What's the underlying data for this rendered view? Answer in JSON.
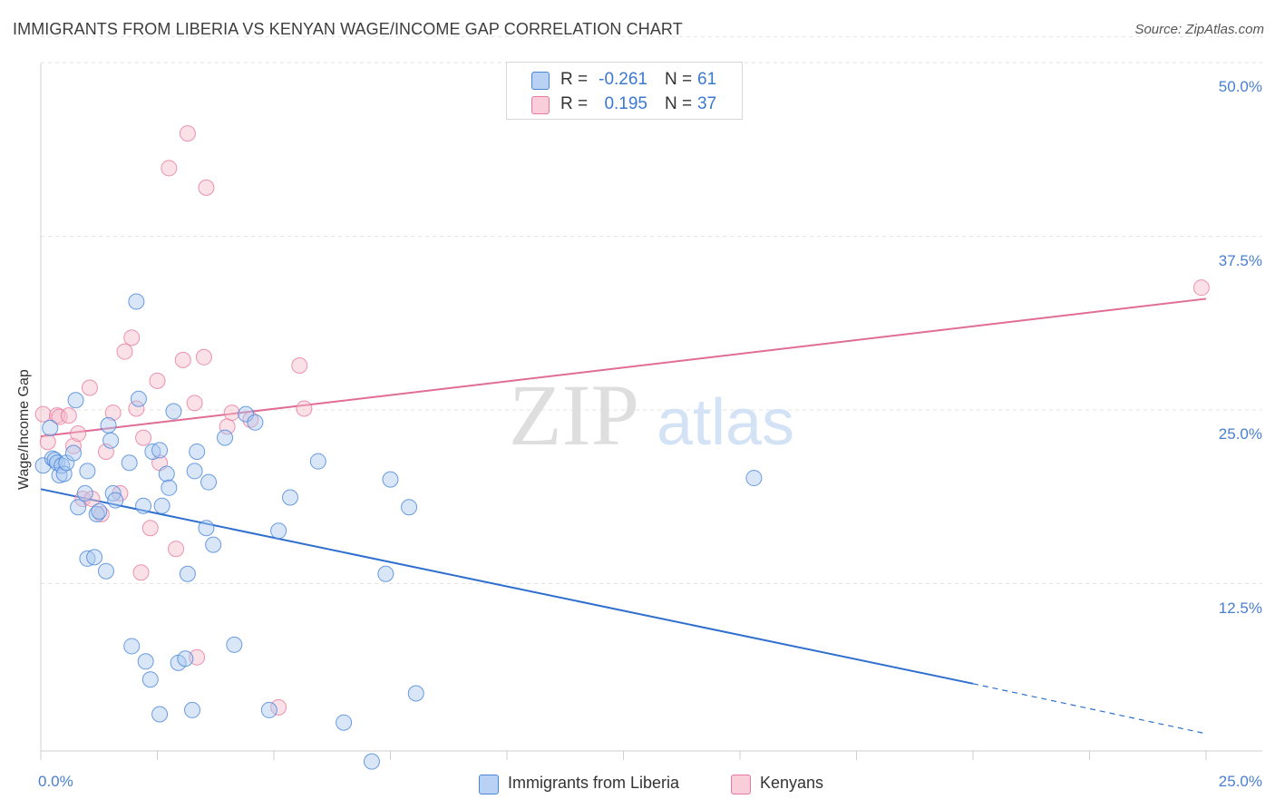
{
  "title": "IMMIGRANTS FROM LIBERIA VS KENYAN WAGE/INCOME GAP CORRELATION CHART",
  "source": "Source: ZipAtlas.com",
  "watermark": {
    "zip": "ZIP",
    "atlas": "atlas"
  },
  "colors": {
    "blue": "#4a86d8",
    "blue_fill": "#a9c8f0",
    "blue_line": "#2f6fce",
    "pink": "#e8799e",
    "pink_fill": "#f5bccd",
    "pink_line": "#e06d95",
    "tick_label": "#4a7fd0",
    "grid": "#e3e3e3"
  },
  "legend_top": {
    "rows": [
      {
        "r_label": "R =",
        "r_value": "-0.261",
        "n_label": "N =",
        "n_value": "61"
      },
      {
        "r_label": "R =",
        "r_value": "0.195",
        "n_label": "N =",
        "n_value": "37"
      }
    ]
  },
  "legend_bottom": [
    "Immigrants from Liberia",
    "Kenyans"
  ],
  "chart_data": {
    "type": "scatter",
    "title": "IMMIGRANTS FROM LIBERIA VS KENYAN WAGE/INCOME GAP CORRELATION CHART",
    "xlabel": "",
    "ylabel": "Wage/Income Gap",
    "xlim": [
      0,
      25
    ],
    "ylim": [
      0,
      52
    ],
    "x_tick_labels": [
      "0.0%",
      "25.0%"
    ],
    "y_ticks": [
      12.5,
      25.0,
      37.5,
      50.0
    ],
    "y_tick_labels": [
      "12.5%",
      "25.0%",
      "37.5%",
      "50.0%"
    ],
    "grid": true,
    "legend_position": "bottom",
    "series": [
      {
        "name": "Immigrants from Liberia",
        "r": -0.261,
        "n": 61,
        "trend": {
          "x0": 0,
          "y0": 19.3,
          "x1": 20,
          "y1": 5.3,
          "dashed_to_x": 25,
          "dashed_to_y": 1.7
        },
        "points": [
          [
            0.05,
            21.0
          ],
          [
            0.2,
            23.7
          ],
          [
            0.25,
            21.5
          ],
          [
            0.3,
            21.4
          ],
          [
            0.35,
            21.2
          ],
          [
            0.4,
            20.3
          ],
          [
            0.45,
            21.0
          ],
          [
            0.5,
            20.4
          ],
          [
            0.55,
            21.2
          ],
          [
            0.7,
            21.9
          ],
          [
            0.75,
            25.7
          ],
          [
            0.8,
            18.0
          ],
          [
            0.95,
            19.0
          ],
          [
            1.0,
            20.6
          ],
          [
            1.0,
            14.3
          ],
          [
            1.15,
            14.4
          ],
          [
            1.2,
            17.5
          ],
          [
            1.25,
            17.7
          ],
          [
            1.4,
            13.4
          ],
          [
            1.45,
            23.9
          ],
          [
            1.5,
            22.8
          ],
          [
            1.55,
            19.0
          ],
          [
            1.6,
            18.5
          ],
          [
            1.9,
            21.2
          ],
          [
            1.95,
            8.0
          ],
          [
            2.05,
            32.8
          ],
          [
            2.1,
            25.8
          ],
          [
            2.2,
            18.1
          ],
          [
            2.25,
            6.9
          ],
          [
            2.35,
            5.6
          ],
          [
            2.4,
            22.0
          ],
          [
            2.55,
            3.1
          ],
          [
            2.55,
            22.1
          ],
          [
            2.6,
            18.1
          ],
          [
            2.7,
            20.4
          ],
          [
            2.75,
            19.4
          ],
          [
            2.85,
            24.9
          ],
          [
            2.95,
            6.8
          ],
          [
            3.1,
            7.1
          ],
          [
            3.15,
            13.2
          ],
          [
            3.25,
            3.4
          ],
          [
            3.3,
            20.6
          ],
          [
            3.35,
            22.0
          ],
          [
            3.55,
            16.5
          ],
          [
            3.6,
            19.8
          ],
          [
            3.7,
            15.3
          ],
          [
            3.95,
            23.0
          ],
          [
            4.15,
            8.1
          ],
          [
            4.4,
            24.7
          ],
          [
            4.6,
            24.1
          ],
          [
            4.9,
            3.4
          ],
          [
            5.1,
            16.3
          ],
          [
            5.35,
            18.7
          ],
          [
            5.95,
            21.3
          ],
          [
            6.5,
            2.5
          ],
          [
            7.1,
            -0.3
          ],
          [
            7.4,
            13.2
          ],
          [
            7.5,
            20.0
          ],
          [
            7.9,
            18.0
          ],
          [
            8.05,
            4.6
          ],
          [
            15.3,
            20.1
          ]
        ]
      },
      {
        "name": "Kenyans",
        "r": 0.195,
        "n": 37,
        "trend": {
          "x0": 0,
          "y0": 23.1,
          "x1": 25,
          "y1": 33.0
        },
        "points": [
          [
            0.05,
            24.7
          ],
          [
            0.15,
            22.7
          ],
          [
            0.35,
            24.6
          ],
          [
            0.4,
            24.5
          ],
          [
            0.6,
            24.6
          ],
          [
            0.7,
            22.4
          ],
          [
            0.8,
            23.3
          ],
          [
            0.9,
            18.6
          ],
          [
            1.05,
            26.6
          ],
          [
            1.1,
            18.6
          ],
          [
            1.3,
            17.5
          ],
          [
            1.4,
            22.0
          ],
          [
            1.55,
            24.8
          ],
          [
            1.7,
            19.0
          ],
          [
            1.8,
            29.2
          ],
          [
            1.95,
            30.2
          ],
          [
            2.05,
            25.1
          ],
          [
            2.15,
            13.3
          ],
          [
            2.2,
            23.0
          ],
          [
            2.35,
            16.5
          ],
          [
            2.5,
            27.1
          ],
          [
            2.55,
            21.2
          ],
          [
            2.75,
            42.4
          ],
          [
            2.9,
            15.0
          ],
          [
            3.05,
            28.6
          ],
          [
            3.15,
            44.9
          ],
          [
            3.3,
            25.5
          ],
          [
            3.35,
            7.2
          ],
          [
            3.5,
            28.8
          ],
          [
            3.55,
            41.0
          ],
          [
            4.0,
            23.8
          ],
          [
            4.1,
            24.8
          ],
          [
            4.5,
            24.3
          ],
          [
            5.1,
            3.6
          ],
          [
            5.55,
            28.2
          ],
          [
            5.65,
            25.1
          ],
          [
            24.9,
            33.8
          ]
        ]
      }
    ]
  }
}
